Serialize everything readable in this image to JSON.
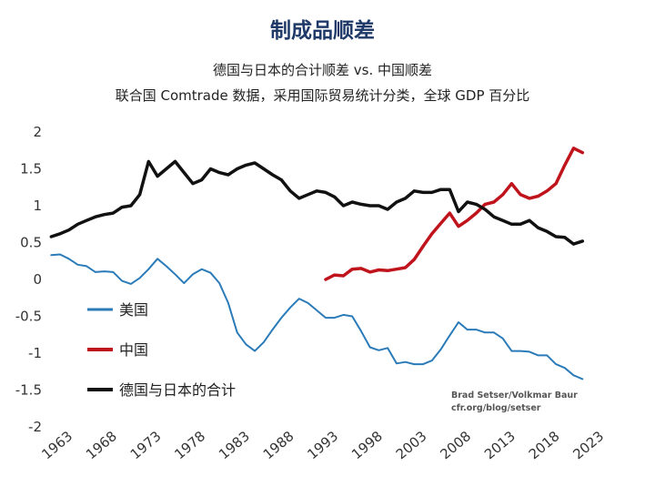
{
  "chart_data": {
    "type": "line",
    "title": "制成品顺差",
    "subtitle": "德国与日本的合计顺差 vs. 中国顺差",
    "subtitle2": "联合国 Comtrade 数据，采用国际贸易统计分类，全球 GDP 百分比",
    "source": [
      "Brad Setser/Volkmar Baur",
      "cfr.org/blog/setser"
    ],
    "xlim": [
      1963,
      2023
    ],
    "ylim": [
      -2,
      2
    ],
    "xticks": [
      "1963",
      "1968",
      "1973",
      "1978",
      "1983",
      "1988",
      "1993",
      "1998",
      "2003",
      "2008",
      "2013",
      "2018",
      "2023"
    ],
    "yticks": [
      {
        "value": 2,
        "label": "2"
      },
      {
        "value": 1.5,
        "label": "1.5"
      },
      {
        "value": 1,
        "label": "1"
      },
      {
        "value": 0.5,
        "label": "0.5"
      },
      {
        "value": 0,
        "label": "0"
      },
      {
        "value": -0.5,
        "label": "-0.5"
      },
      {
        "value": -1,
        "label": "-1"
      },
      {
        "value": -1.5,
        "label": "-1.5"
      },
      {
        "value": -2,
        "label": "-2"
      }
    ],
    "series": [
      {
        "name": "美国",
        "color": "#2b7bb9",
        "x": [
          1962,
          1963,
          1964,
          1965,
          1966,
          1967,
          1968,
          1969,
          1970,
          1971,
          1972,
          1973,
          1974,
          1975,
          1976,
          1977,
          1978,
          1979,
          1980,
          1981,
          1982,
          1983,
          1984,
          1985,
          1986,
          1987,
          1988,
          1989,
          1990,
          1991,
          1992,
          1993,
          1994,
          1995,
          1996,
          1997,
          1998,
          1999,
          2000,
          2001,
          2002,
          2003,
          2004,
          2005,
          2006,
          2007,
          2008,
          2009,
          2010,
          2011,
          2012,
          2013,
          2014,
          2015,
          2016,
          2017,
          2018,
          2019,
          2020,
          2021,
          2022
        ],
        "values": [
          0.33,
          0.34,
          0.28,
          0.2,
          0.18,
          0.1,
          0.11,
          0.1,
          -0.02,
          -0.06,
          0.02,
          0.14,
          0.28,
          0.18,
          0.07,
          -0.05,
          0.07,
          0.14,
          0.09,
          -0.05,
          -0.32,
          -0.72,
          -0.88,
          -0.97,
          -0.85,
          -0.68,
          -0.52,
          -0.38,
          -0.26,
          -0.32,
          -0.42,
          -0.52,
          -0.52,
          -0.48,
          -0.5,
          -0.7,
          -0.92,
          -0.96,
          -0.93,
          -1.14,
          -1.12,
          -1.15,
          -1.15,
          -1.1,
          -0.95,
          -0.76,
          -0.58,
          -0.68,
          -0.68,
          -0.72,
          -0.72,
          -0.8,
          -0.97,
          -0.97,
          -0.98,
          -1.03,
          -1.03,
          -1.15,
          -1.2,
          -1.3,
          -1.35
        ]
      },
      {
        "name": "中国",
        "color": "#c0141c",
        "x": [
          1993,
          1994,
          1995,
          1996,
          1997,
          1998,
          1999,
          2000,
          2001,
          2002,
          2003,
          2004,
          2005,
          2006,
          2007,
          2008,
          2009,
          2010,
          2011,
          2012,
          2013,
          2014,
          2015,
          2016,
          2017,
          2018,
          2019,
          2020,
          2021,
          2022
        ],
        "values": [
          0.0,
          0.06,
          0.05,
          0.14,
          0.15,
          0.1,
          0.13,
          0.12,
          0.14,
          0.16,
          0.27,
          0.45,
          0.62,
          0.76,
          0.9,
          0.72,
          0.8,
          0.9,
          1.02,
          1.05,
          1.15,
          1.3,
          1.15,
          1.1,
          1.13,
          1.2,
          1.3,
          1.55,
          1.78,
          1.72
        ]
      },
      {
        "name": "德国与日本的合计",
        "color": "#111111",
        "x": [
          1962,
          1963,
          1964,
          1965,
          1966,
          1967,
          1968,
          1969,
          1970,
          1971,
          1972,
          1973,
          1974,
          1975,
          1976,
          1977,
          1978,
          1979,
          1980,
          1981,
          1982,
          1983,
          1984,
          1985,
          1986,
          1987,
          1988,
          1989,
          1990,
          1991,
          1992,
          1993,
          1994,
          1995,
          1996,
          1997,
          1998,
          1999,
          2000,
          2001,
          2002,
          2003,
          2004,
          2005,
          2006,
          2007,
          2008,
          2009,
          2010,
          2011,
          2012,
          2013,
          2014,
          2015,
          2016,
          2017,
          2018,
          2019,
          2020,
          2021,
          2022
        ],
        "values": [
          0.58,
          0.62,
          0.67,
          0.75,
          0.8,
          0.85,
          0.88,
          0.9,
          0.98,
          1.0,
          1.15,
          1.6,
          1.4,
          1.5,
          1.6,
          1.45,
          1.3,
          1.35,
          1.5,
          1.45,
          1.42,
          1.5,
          1.55,
          1.58,
          1.5,
          1.42,
          1.35,
          1.2,
          1.1,
          1.15,
          1.2,
          1.18,
          1.12,
          1.0,
          1.05,
          1.02,
          1.0,
          1.0,
          0.95,
          1.05,
          1.1,
          1.2,
          1.18,
          1.18,
          1.22,
          1.22,
          0.92,
          1.05,
          1.02,
          0.95,
          0.85,
          0.8,
          0.75,
          0.75,
          0.8,
          0.7,
          0.65,
          0.58,
          0.57,
          0.48,
          0.52
        ]
      }
    ],
    "legend": [
      {
        "label": "美国",
        "color": "#2b7bb9"
      },
      {
        "label": "中国",
        "color": "#c0141c"
      },
      {
        "label": "德国与日本的合计",
        "color": "#111111"
      }
    ]
  }
}
